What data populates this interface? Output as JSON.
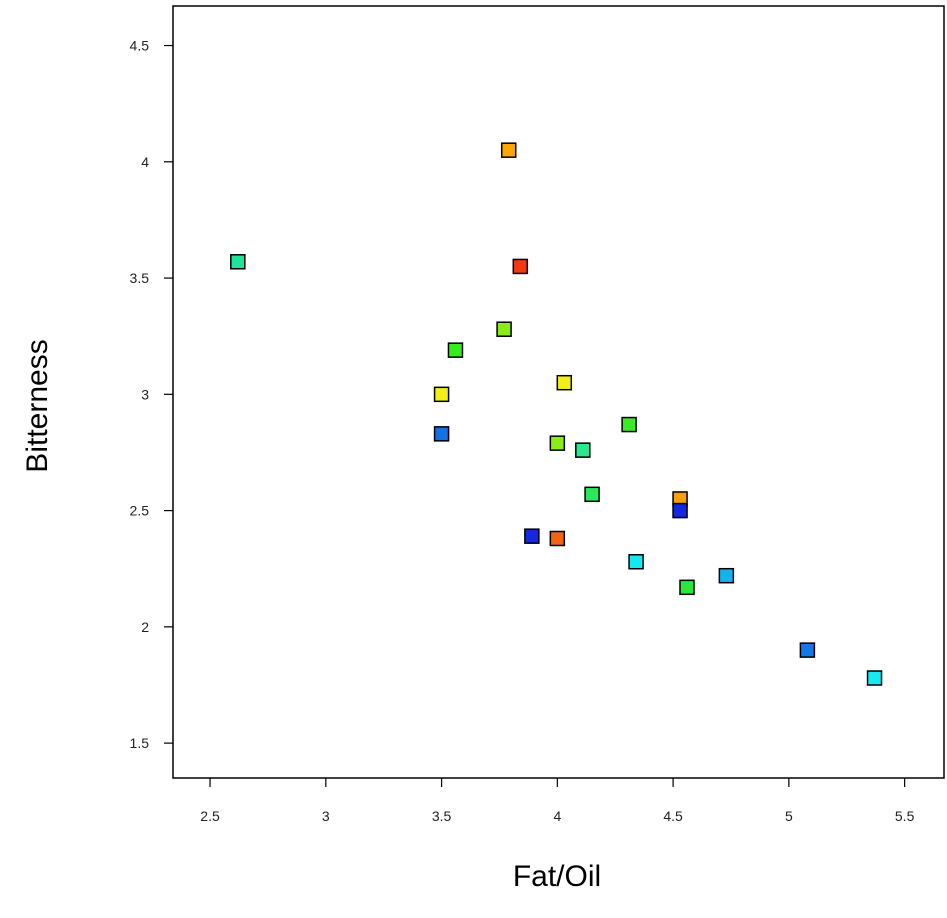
{
  "chart_data": {
    "type": "scatter",
    "title": "",
    "xlabel": "Fat/Oil",
    "ylabel": "Bitterness",
    "xlim": [
      2.34,
      5.67
    ],
    "ylim": [
      1.35,
      4.67
    ],
    "xticks": [
      2.5,
      3,
      3.5,
      4,
      4.5,
      5,
      5.5
    ],
    "yticks": [
      1.5,
      2,
      2.5,
      3,
      3.5,
      4,
      4.5
    ],
    "xtick_labels": [
      "2.5",
      "3",
      "3.5",
      "4",
      "4.5",
      "5",
      "5.5"
    ],
    "ytick_labels": [
      "1.5",
      "2",
      "2.5",
      "3",
      "3.5",
      "4",
      "4.5"
    ],
    "grid": false,
    "legend": "none",
    "marker": "square",
    "points": [
      {
        "x": 2.62,
        "y": 3.57,
        "color": "#1fe39a"
      },
      {
        "x": 3.79,
        "y": 4.05,
        "color": "#ffa500"
      },
      {
        "x": 3.84,
        "y": 3.55,
        "color": "#ee3b10"
      },
      {
        "x": 3.77,
        "y": 3.28,
        "color": "#8aec18"
      },
      {
        "x": 3.56,
        "y": 3.19,
        "color": "#33ee1c"
      },
      {
        "x": 3.5,
        "y": 3.0,
        "color": "#f0f018"
      },
      {
        "x": 4.03,
        "y": 3.05,
        "color": "#f0f018"
      },
      {
        "x": 3.5,
        "y": 2.83,
        "color": "#1470e6"
      },
      {
        "x": 4.0,
        "y": 2.79,
        "color": "#8aec18"
      },
      {
        "x": 4.11,
        "y": 2.76,
        "color": "#2ae88c"
      },
      {
        "x": 4.31,
        "y": 2.87,
        "color": "#3fe82a"
      },
      {
        "x": 4.15,
        "y": 2.57,
        "color": "#2ae85a"
      },
      {
        "x": 4.53,
        "y": 2.55,
        "color": "#f5a00c"
      },
      {
        "x": 4.53,
        "y": 2.5,
        "color": "#1428e0"
      },
      {
        "x": 3.89,
        "y": 2.39,
        "color": "#1428e0"
      },
      {
        "x": 4.0,
        "y": 2.38,
        "color": "#f06414"
      },
      {
        "x": 4.34,
        "y": 2.28,
        "color": "#14e8f0"
      },
      {
        "x": 4.56,
        "y": 2.17,
        "color": "#2ae83a"
      },
      {
        "x": 4.73,
        "y": 2.22,
        "color": "#14b4ea"
      },
      {
        "x": 5.08,
        "y": 1.9,
        "color": "#1478e6"
      },
      {
        "x": 5.37,
        "y": 1.78,
        "color": "#14eaf0"
      }
    ]
  }
}
